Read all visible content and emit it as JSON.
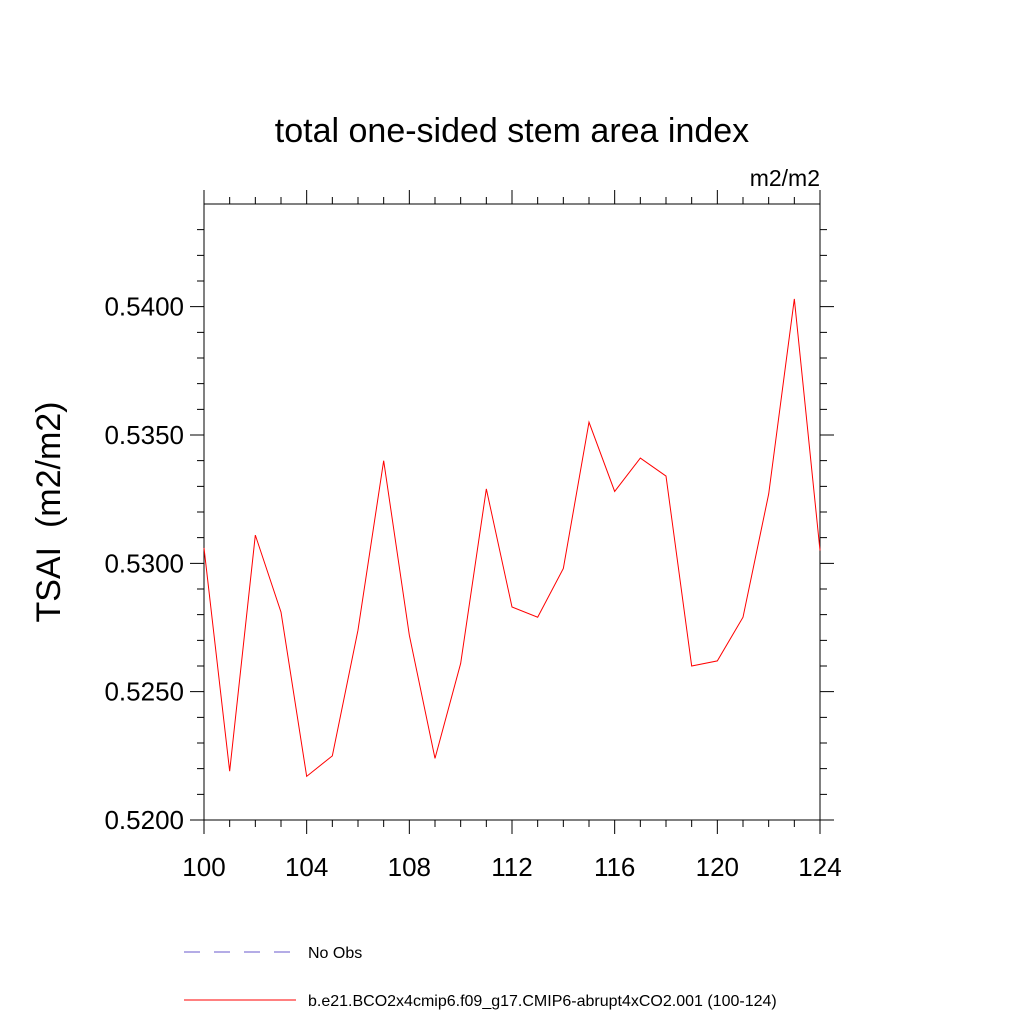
{
  "chart_data": {
    "type": "line",
    "title": "total one-sided stem area index",
    "units": "m2/m2",
    "ylabel": "TSAI  (m2/m2)",
    "xlabel": "",
    "xlim": [
      100,
      124
    ],
    "ylim": [
      0.52,
      0.544
    ],
    "x_ticks": [
      100,
      104,
      108,
      112,
      116,
      120,
      124
    ],
    "x_tick_labels": [
      "100",
      "104",
      "108",
      "112",
      "116",
      "120",
      "124"
    ],
    "y_ticks": [
      0.52,
      0.525,
      0.53,
      0.535,
      0.54
    ],
    "y_tick_labels": [
      "0.5200",
      "0.5250",
      "0.5300",
      "0.5350",
      "0.5400"
    ],
    "grid": false,
    "legend_position": "bottom",
    "x": [
      100,
      101,
      102,
      103,
      104,
      105,
      106,
      107,
      108,
      109,
      110,
      111,
      112,
      113,
      114,
      115,
      116,
      117,
      118,
      119,
      120,
      121,
      122,
      123,
      124
    ],
    "series": [
      {
        "name": "b.e21.BCO2x4cmip6.f09_g17.CMIP6-abrupt4xCO2.001 (100-124)",
        "color": "#ff0000",
        "style": "solid",
        "values": [
          0.5306,
          0.5219,
          0.5311,
          0.5281,
          0.5217,
          0.5225,
          0.5274,
          0.534,
          0.5272,
          0.5224,
          0.5261,
          0.5329,
          0.5283,
          0.5279,
          0.5298,
          0.5355,
          0.5328,
          0.5341,
          0.5334,
          0.526,
          0.5262,
          0.5279,
          0.5327,
          0.5403,
          0.5305
        ]
      }
    ],
    "legend": [
      {
        "label": "No Obs",
        "color": "#6a5acd",
        "style": "dashed"
      },
      {
        "label": "b.e21.BCO2x4cmip6.f09_g17.CMIP6-abrupt4xCO2.001 (100-124)",
        "color": "#ff0000",
        "style": "solid"
      }
    ]
  }
}
